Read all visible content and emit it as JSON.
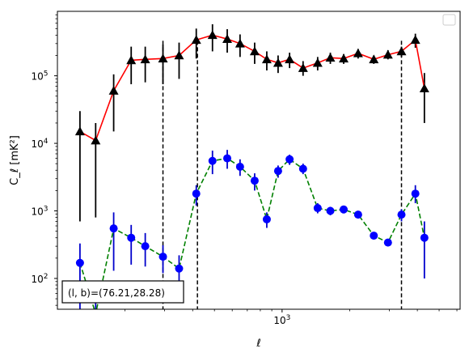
{
  "chart_data": {
    "type": "line",
    "xscale": "log",
    "yscale": "log",
    "xlim": [
      100,
      6200
    ],
    "ylim": [
      35,
      900000
    ],
    "xlabel": "ℓ",
    "ylabel": "C_ℓ [mK²]",
    "x_ticks": [
      {
        "value": 1000,
        "base": "10",
        "exp": "3"
      }
    ],
    "y_ticks": [
      {
        "value": 100,
        "base": "10",
        "exp": "2"
      },
      {
        "value": 1000,
        "base": "10",
        "exp": "3"
      },
      {
        "value": 10000,
        "base": "10",
        "exp": "4"
      },
      {
        "value": 100000,
        "base": "10",
        "exp": "5"
      }
    ],
    "legend": {
      "placement": "top-right",
      "entries": []
    },
    "annotation": "(l, b)=(76.21,28.28)",
    "vlines": [
      295,
      420,
      3400
    ],
    "series": [
      {
        "color": "#ff0000",
        "marker": "triangle",
        "linestyle": "solid",
        "errorbar_color": "#000000",
        "points": [
          {
            "x": 126,
            "y": 15000,
            "lo": 700,
            "hi": 30000
          },
          {
            "x": 148,
            "y": 11000,
            "lo": 800,
            "hi": 20000
          },
          {
            "x": 178,
            "y": 60000,
            "lo": 15000,
            "hi": 105000
          },
          {
            "x": 213,
            "y": 170000,
            "lo": 75000,
            "hi": 270000
          },
          {
            "x": 246,
            "y": 175000,
            "lo": 80000,
            "hi": 270000
          },
          {
            "x": 295,
            "y": 180000,
            "lo": 75000,
            "hi": 290000
          },
          {
            "x": 348,
            "y": 200000,
            "lo": 90000,
            "hi": 310000
          },
          {
            "x": 415,
            "y": 340000,
            "lo": 180000,
            "hi": 500000
          },
          {
            "x": 490,
            "y": 400000,
            "lo": 230000,
            "hi": 580000
          },
          {
            "x": 570,
            "y": 350000,
            "lo": 220000,
            "hi": 490000
          },
          {
            "x": 650,
            "y": 300000,
            "lo": 190000,
            "hi": 410000
          },
          {
            "x": 755,
            "y": 230000,
            "lo": 150000,
            "hi": 310000
          },
          {
            "x": 855,
            "y": 175000,
            "lo": 120000,
            "hi": 230000
          },
          {
            "x": 960,
            "y": 155000,
            "lo": 110000,
            "hi": 200000
          },
          {
            "x": 1080,
            "y": 175000,
            "lo": 130000,
            "hi": 220000
          },
          {
            "x": 1240,
            "y": 130000,
            "lo": 100000,
            "hi": 165000
          },
          {
            "x": 1440,
            "y": 155000,
            "lo": 120000,
            "hi": 190000
          },
          {
            "x": 1640,
            "y": 185000,
            "lo": 150000,
            "hi": 220000
          },
          {
            "x": 1880,
            "y": 180000,
            "lo": 150000,
            "hi": 210000
          },
          {
            "x": 2180,
            "y": 215000,
            "lo": 180000,
            "hi": 250000
          },
          {
            "x": 2560,
            "y": 175000,
            "lo": 150000,
            "hi": 200000
          },
          {
            "x": 2960,
            "y": 205000,
            "lo": 175000,
            "hi": 240000
          },
          {
            "x": 3400,
            "y": 230000,
            "lo": 190000,
            "hi": 270000
          },
          {
            "x": 3920,
            "y": 340000,
            "lo": 260000,
            "hi": 420000
          },
          {
            "x": 4300,
            "y": 65000,
            "lo": 20000,
            "hi": 110000
          }
        ]
      },
      {
        "color": "#008000",
        "marker": "circle",
        "marker_color": "#0000ff",
        "linestyle": "dashed",
        "errorbar_color": "#0000cc",
        "points": [
          {
            "x": 126,
            "y": 170,
            "lo": 35,
            "hi": 330
          },
          {
            "x": 148,
            "y": 30,
            "lo": 35,
            "hi": 60
          },
          {
            "x": 178,
            "y": 550,
            "lo": 130,
            "hi": 950
          },
          {
            "x": 213,
            "y": 400,
            "lo": 160,
            "hi": 620
          },
          {
            "x": 246,
            "y": 300,
            "lo": 150,
            "hi": 470
          },
          {
            "x": 295,
            "y": 210,
            "lo": 120,
            "hi": 310
          },
          {
            "x": 348,
            "y": 140,
            "lo": 80,
            "hi": 220
          },
          {
            "x": 415,
            "y": 1800,
            "lo": 1200,
            "hi": 2400
          },
          {
            "x": 490,
            "y": 5500,
            "lo": 3500,
            "hi": 7800
          },
          {
            "x": 570,
            "y": 6000,
            "lo": 4200,
            "hi": 8000
          },
          {
            "x": 650,
            "y": 4500,
            "lo": 3300,
            "hi": 5800
          },
          {
            "x": 755,
            "y": 2800,
            "lo": 2000,
            "hi": 3600
          },
          {
            "x": 855,
            "y": 750,
            "lo": 560,
            "hi": 950
          },
          {
            "x": 960,
            "y": 3900,
            "lo": 3100,
            "hi": 4700
          },
          {
            "x": 1080,
            "y": 5800,
            "lo": 4800,
            "hi": 6800
          },
          {
            "x": 1240,
            "y": 4200,
            "lo": 3500,
            "hi": 5000
          },
          {
            "x": 1440,
            "y": 1100,
            "lo": 920,
            "hi": 1300
          },
          {
            "x": 1640,
            "y": 1000,
            "lo": 860,
            "hi": 1150
          },
          {
            "x": 1880,
            "y": 1050,
            "lo": 920,
            "hi": 1180
          },
          {
            "x": 2180,
            "y": 880,
            "lo": 770,
            "hi": 990
          },
          {
            "x": 2560,
            "y": 430,
            "lo": 380,
            "hi": 480
          },
          {
            "x": 2960,
            "y": 340,
            "lo": 300,
            "hi": 380
          },
          {
            "x": 3400,
            "y": 880,
            "lo": 700,
            "hi": 1060
          },
          {
            "x": 3920,
            "y": 1800,
            "lo": 1300,
            "hi": 2400
          },
          {
            "x": 4300,
            "y": 400,
            "lo": 100,
            "hi": 700
          }
        ]
      }
    ]
  }
}
